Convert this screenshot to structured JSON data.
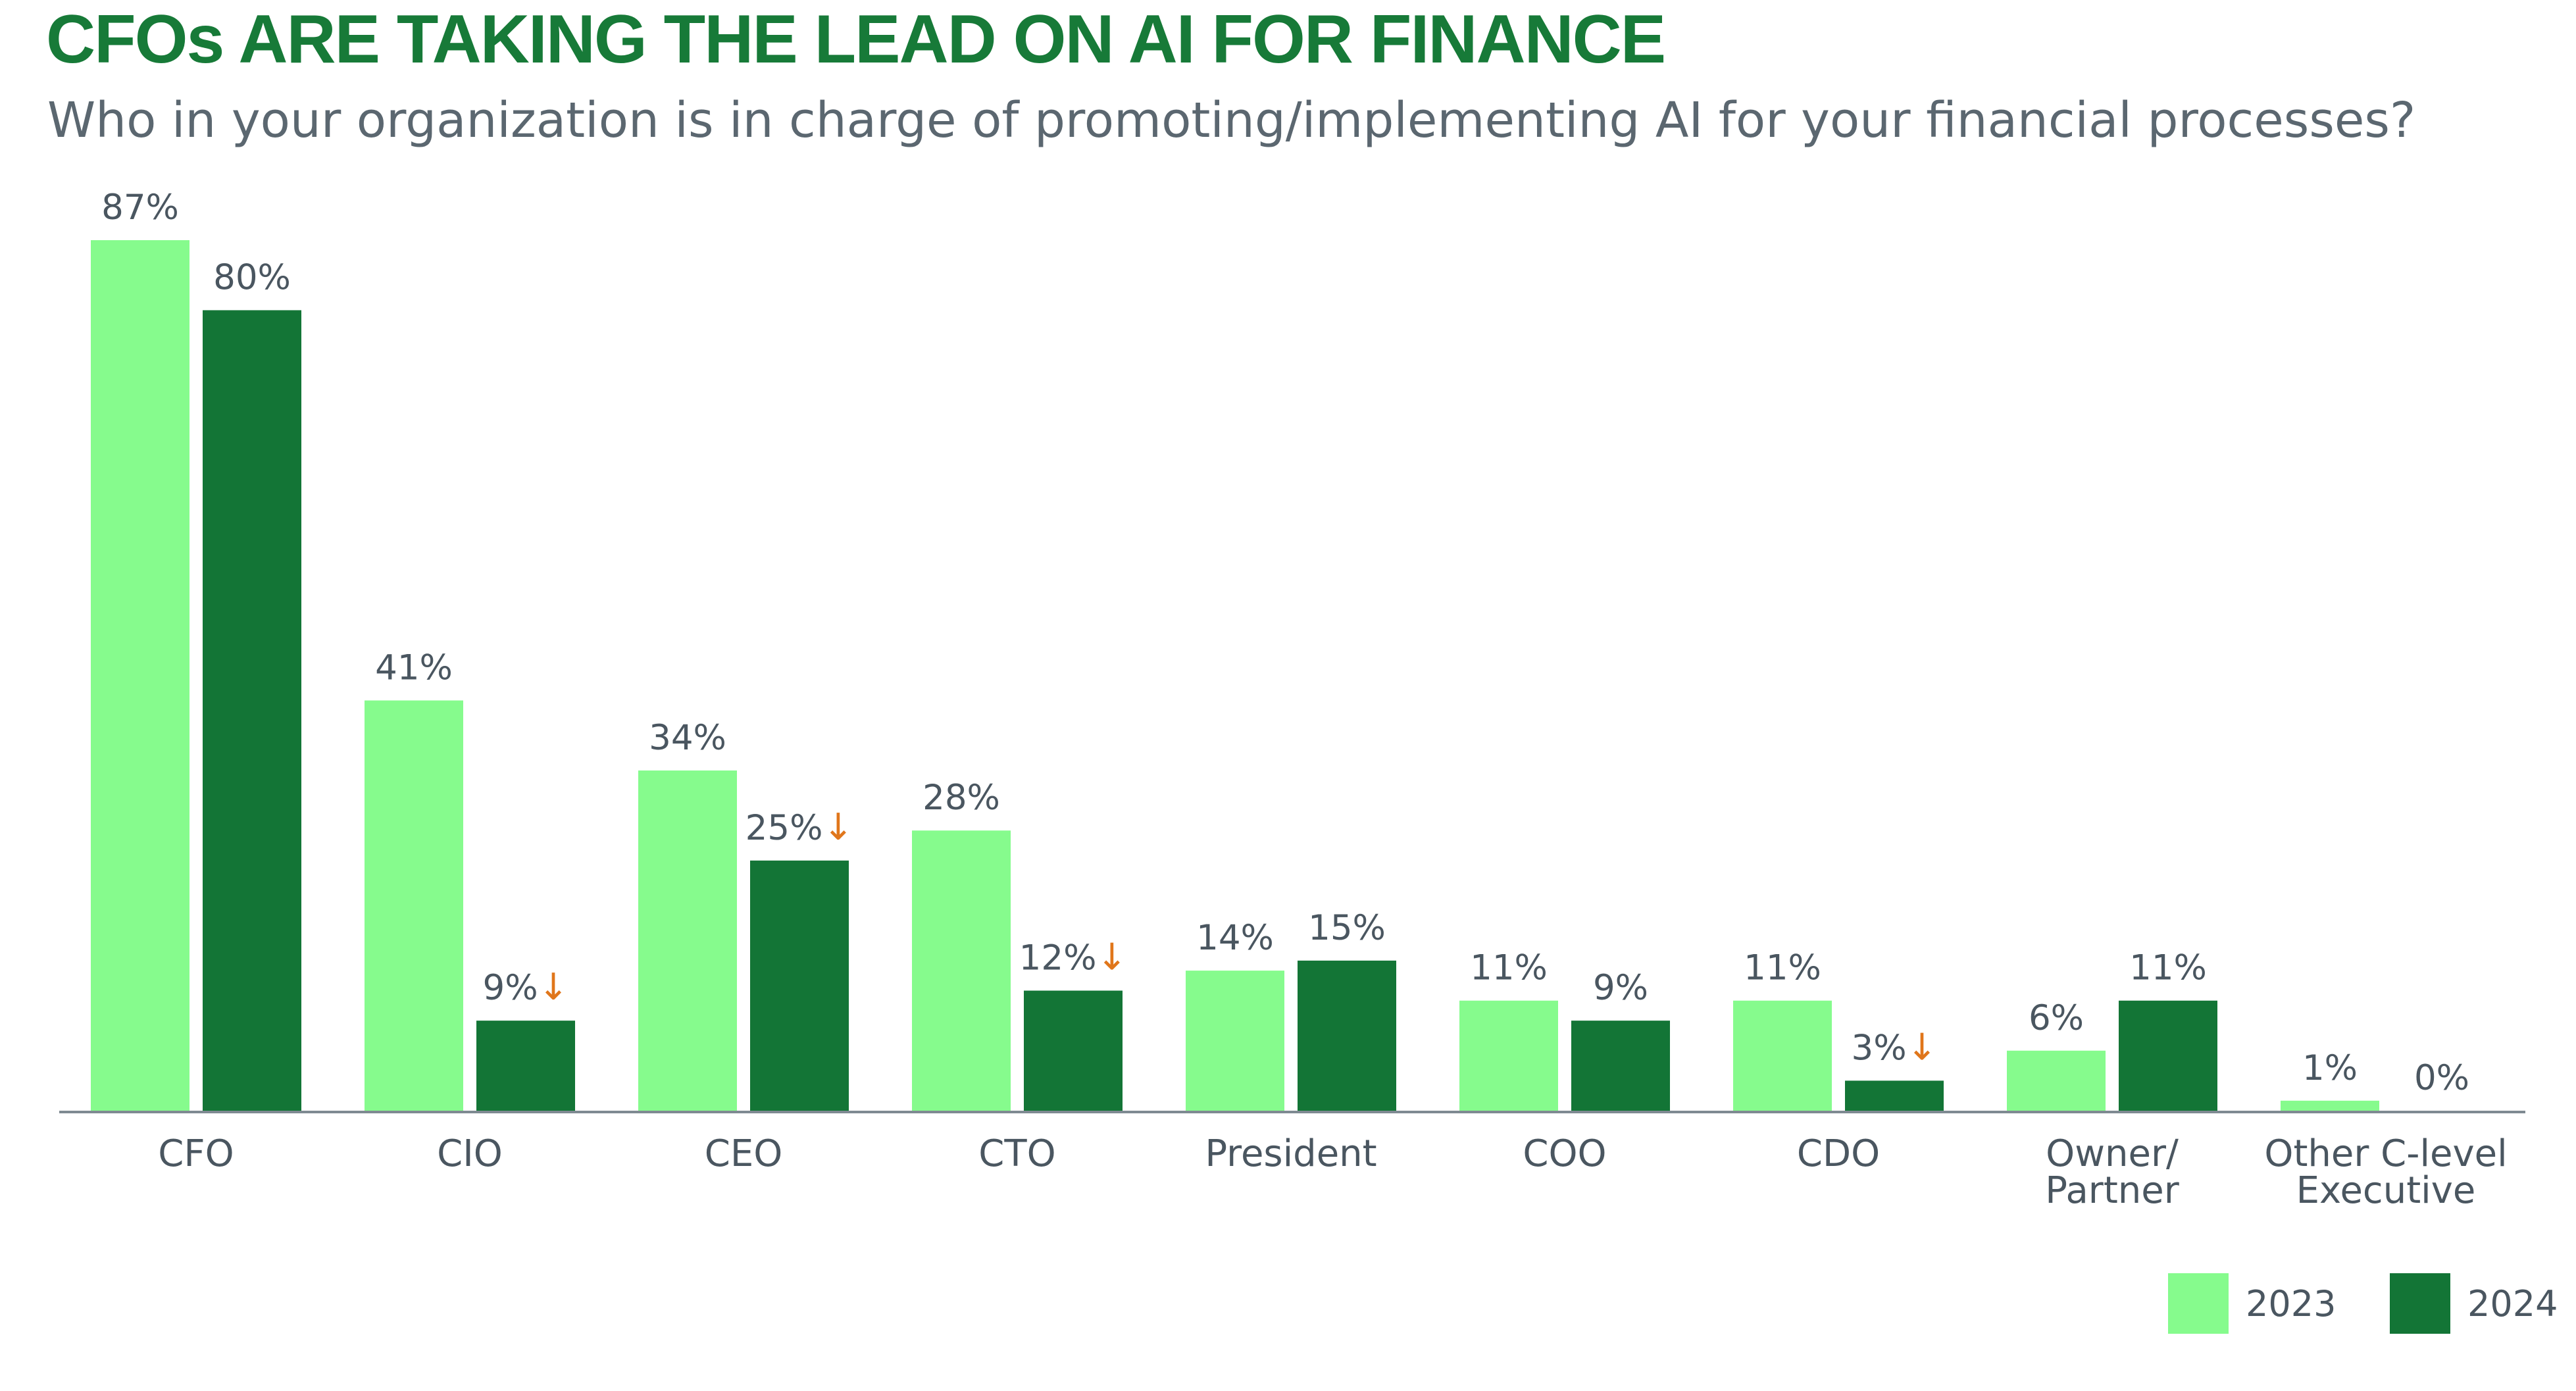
{
  "title": "CFOs ARE TAKING THE LEAD ON AI FOR FINANCE",
  "subtitle": "Who in your organization is in charge of promoting/implementing AI for your financial processes?",
  "colors": {
    "title": "#177a38",
    "subtitle": "#5b6770",
    "text": "#4a5660",
    "series_2023": "#86fb8d",
    "series_2024": "#137536",
    "decline_arrow": "#e0761b",
    "axis": "#7f8a92"
  },
  "decline_marker": "↓",
  "chart_data": {
    "type": "bar",
    "title": "CFOs ARE TAKING THE LEAD ON AI FOR FINANCE",
    "subtitle": "Who in your organization is in charge of promoting/implementing AI for your financial processes?",
    "categories": [
      "CFO",
      "CIO",
      "CEO",
      "CTO",
      "President",
      "COO",
      "CDO",
      "Owner/\nPartner",
      "Other C-level\nExecutive"
    ],
    "series": [
      {
        "name": "2023",
        "values": [
          87,
          41,
          34,
          28,
          14,
          11,
          11,
          6,
          1
        ],
        "labels": [
          "87%",
          "41%",
          "34%",
          "28%",
          "14%",
          "11%",
          "11%",
          "6%",
          "1%"
        ],
        "decline": [
          false,
          false,
          false,
          false,
          false,
          false,
          false,
          false,
          false
        ]
      },
      {
        "name": "2024",
        "values": [
          80,
          9,
          25,
          12,
          15,
          9,
          3,
          11,
          0
        ],
        "labels": [
          "80%",
          "9%",
          "25%",
          "12%",
          "15%",
          "9%",
          "3%",
          "11%",
          "0%"
        ],
        "decline": [
          false,
          true,
          true,
          true,
          false,
          false,
          true,
          false,
          false
        ]
      }
    ],
    "unit": "%",
    "ylim": [
      0,
      87
    ],
    "grid": false,
    "y_axis_shown": false,
    "legend": {
      "position": "bottom-right",
      "entries": [
        "2023",
        "2024"
      ]
    }
  }
}
